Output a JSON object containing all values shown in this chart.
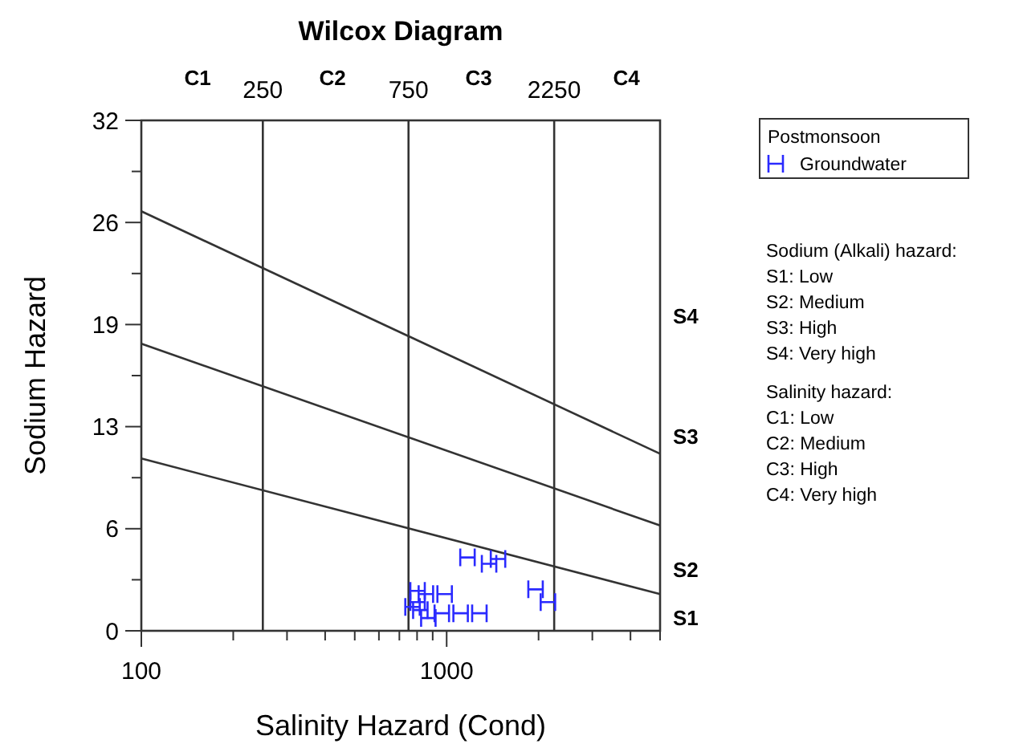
{
  "chart_data": {
    "type": "scatter",
    "title": "Wilcox Diagram",
    "xlabel": "Salinity Hazard (Cond)",
    "ylabel": "Sodium Hazard",
    "legend_title": "Postmonsoon",
    "legend": "top right",
    "log": "x",
    "grid": false,
    "xlim": [
      100,
      5000
    ],
    "ylim": [
      0,
      32
    ],
    "xticks": [
      100,
      {
        "value": 200,
        "label": null
      },
      {
        "value": 300,
        "label": null
      },
      {
        "value": 400,
        "label": null
      },
      {
        "value": 500,
        "label": null
      },
      {
        "value": 600,
        "label": null
      },
      {
        "value": 700,
        "label": null
      },
      {
        "value": 800,
        "label": null
      },
      {
        "value": 900,
        "label": null
      },
      1000,
      {
        "value": 2000,
        "label": null
      },
      {
        "value": 3000,
        "label": null
      },
      {
        "value": 4000,
        "label": null
      },
      {
        "value": 5000,
        "label": null
      }
    ],
    "yticks": [
      0,
      {
        "value": 3.2,
        "label": null
      },
      {
        "value": 6.4,
        "label": "6"
      },
      {
        "value": 9.6,
        "label": null
      },
      {
        "value": 12.8,
        "label": "13"
      },
      {
        "value": 16,
        "label": null
      },
      {
        "value": 19.2,
        "label": "19"
      },
      {
        "value": 22.4,
        "label": null
      },
      {
        "value": 25.6,
        "label": "26"
      },
      {
        "value": 28.8,
        "label": null
      },
      32
    ],
    "ref_lines": [
      {
        "axis": "x",
        "value": 250,
        "label": "250"
      },
      {
        "axis": "x",
        "value": 750,
        "label": "750"
      },
      {
        "axis": "x",
        "value": 2250,
        "label": "2250"
      }
    ],
    "series": [
      {
        "type": "line",
        "color": "#333333",
        "x": [
          100,
          5000
        ],
        "values": [
          26.3,
          11.1
        ]
      },
      {
        "type": "line",
        "color": "#333333",
        "x": [
          100,
          5000
        ],
        "values": [
          18.0,
          6.6
        ]
      },
      {
        "type": "line",
        "color": "#333333",
        "x": [
          100,
          5000
        ],
        "values": [
          10.8,
          2.3
        ]
      },
      {
        "name": "Groundwater",
        "color": "#2a2aff",
        "x": [
          1170,
          1377,
          1473,
          1955,
          2146,
          803,
          855,
          985,
          773,
          820,
          871,
          964,
          1111,
          1280,
          803
        ],
        "values": [
          4.6,
          4.2,
          4.5,
          2.6,
          1.8,
          2.5,
          2.3,
          2.3,
          1.5,
          1.3,
          0.8,
          1.1,
          1.1,
          1.1,
          1.8
        ]
      }
    ],
    "annotations": [
      "C1",
      "C2",
      "C3",
      "C4",
      "S4",
      "S3",
      "S2",
      "S1",
      "Sodium (Alkali) hazard:",
      "S1: Low",
      "S2: Medium",
      "S3: High",
      "S4: Very high",
      "Salinity hazard:",
      "C1: Low",
      "C2: Medium",
      "C3: High",
      "C4: Very high"
    ]
  }
}
